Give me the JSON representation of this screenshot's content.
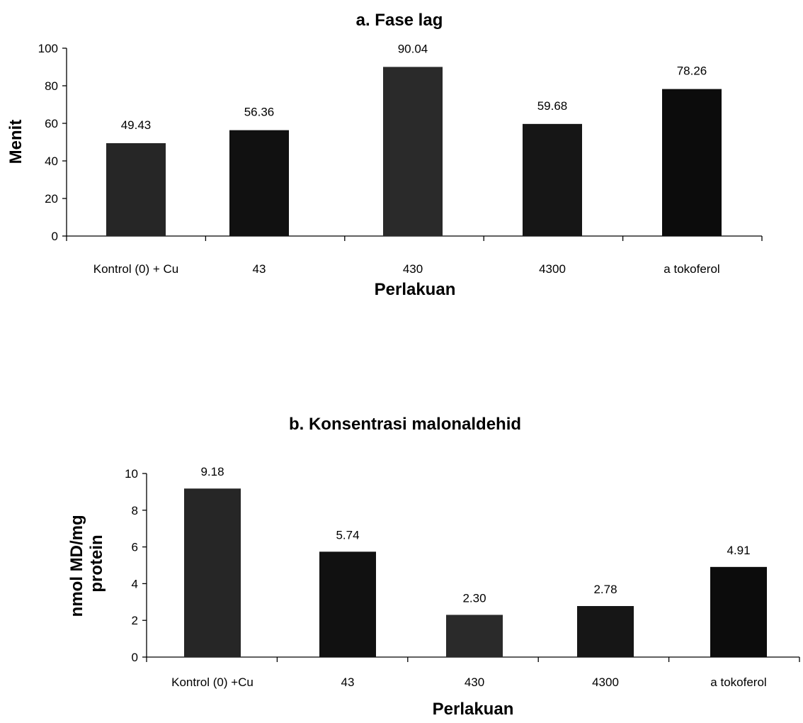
{
  "chart_data": [
    {
      "type": "bar",
      "title": "a. Fase lag",
      "xlabel": "Perlakuan",
      "ylabel": "Menit",
      "categories": [
        "Kontrol (0) + Cu",
        "43",
        "430",
        "4300",
        "a tokoferol"
      ],
      "values": [
        49.43,
        56.36,
        90.04,
        59.68,
        78.26
      ],
      "value_labels": [
        "49.43",
        "56.36",
        "90.04",
        "59.68",
        "78.26"
      ],
      "ylim": [
        0,
        100
      ],
      "yticks": [
        "0",
        "20",
        "40",
        "60",
        "80",
        "100"
      ],
      "bar_colors": [
        "#262626",
        "#111111",
        "#2a2a2a",
        "#161616",
        "#0c0c0c"
      ],
      "grid": false,
      "legend": "none"
    },
    {
      "type": "bar",
      "title": "b. Konsentrasi malonaldehid",
      "xlabel": "Perlakuan",
      "ylabel": "nmol MD/mg protein",
      "ylabel_lines": [
        "nmol MD/mg",
        "protein"
      ],
      "categories": [
        "Kontrol (0) +Cu",
        "43",
        "430",
        "4300",
        "a tokoferol"
      ],
      "values": [
        9.18,
        5.74,
        2.3,
        2.78,
        4.91
      ],
      "value_labels": [
        "9.18",
        "5.74",
        "2.30",
        "2.78",
        "4.91"
      ],
      "ylim": [
        0,
        10
      ],
      "yticks": [
        "0",
        "2",
        "4",
        "6",
        "8",
        "10"
      ],
      "bar_colors": [
        "#262626",
        "#111111",
        "#2a2a2a",
        "#161616",
        "#0c0c0c"
      ],
      "grid": false,
      "legend": "none"
    }
  ]
}
